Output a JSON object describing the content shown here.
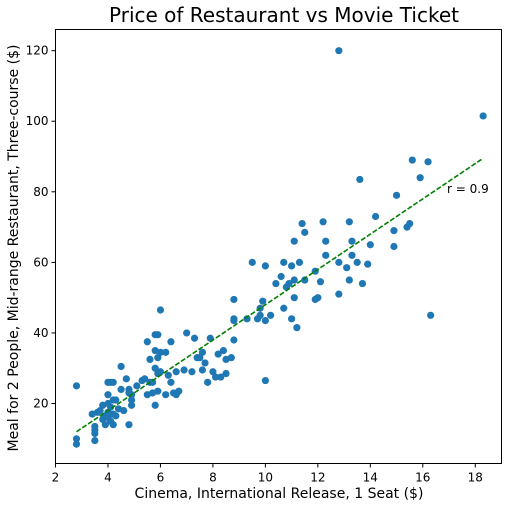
{
  "chart_data": {
    "type": "scatter",
    "title": "Price of Restaurant vs Movie Ticket",
    "xlabel": "Cinema, International Release, 1 Seat ($)",
    "ylabel": "Meal for 2 People, Mid-range Restaurant, Three-course ($)",
    "xlim": [
      2,
      19
    ],
    "ylim": [
      3,
      126
    ],
    "xticks": [
      2,
      4,
      6,
      8,
      10,
      12,
      14,
      16,
      18
    ],
    "yticks": [
      20,
      40,
      60,
      80,
      100,
      120
    ],
    "grid": false,
    "point_color": "#1f77b4",
    "fit_color": "#008000",
    "fit_line": {
      "x": [
        2.8,
        18.3
      ],
      "y": [
        12.0,
        89.5
      ]
    },
    "annotation": "r = 0.9",
    "points": [
      [
        2.8,
        8.5
      ],
      [
        2.8,
        10.0
      ],
      [
        2.8,
        25.0
      ],
      [
        3.4,
        17.0
      ],
      [
        3.5,
        9.5
      ],
      [
        3.5,
        11.5
      ],
      [
        3.5,
        12.5
      ],
      [
        3.5,
        13.5
      ],
      [
        3.6,
        17.5
      ],
      [
        3.7,
        18.0
      ],
      [
        3.8,
        19.5
      ],
      [
        3.8,
        15.5
      ],
      [
        3.9,
        14.0
      ],
      [
        3.9,
        16.5
      ],
      [
        4.0,
        16.0
      ],
      [
        4.0,
        17.5
      ],
      [
        4.0,
        20.0
      ],
      [
        4.0,
        22.5
      ],
      [
        4.0,
        26.0
      ],
      [
        4.1,
        15.0
      ],
      [
        4.1,
        19.0
      ],
      [
        4.1,
        26.0
      ],
      [
        4.2,
        14.0
      ],
      [
        4.2,
        17.0
      ],
      [
        4.2,
        21.0
      ],
      [
        4.2,
        26.0
      ],
      [
        4.3,
        16.5
      ],
      [
        4.3,
        21.0
      ],
      [
        4.4,
        18.5
      ],
      [
        4.5,
        24.0
      ],
      [
        4.5,
        30.5
      ],
      [
        4.6,
        18.0
      ],
      [
        4.7,
        27.0
      ],
      [
        4.8,
        24.0
      ],
      [
        4.8,
        23.0
      ],
      [
        4.8,
        14.0
      ],
      [
        4.9,
        22.5
      ],
      [
        4.9,
        19.5
      ],
      [
        4.9,
        21.0
      ],
      [
        5.1,
        25.0
      ],
      [
        5.3,
        26.5
      ],
      [
        5.4,
        27.0
      ],
      [
        5.5,
        22.5
      ],
      [
        5.5,
        37.5
      ],
      [
        5.6,
        32.5
      ],
      [
        5.6,
        26.0
      ],
      [
        5.7,
        23.0
      ],
      [
        5.7,
        26.0
      ],
      [
        5.8,
        39.5
      ],
      [
        5.8,
        19.5
      ],
      [
        5.8,
        35.0
      ],
      [
        5.8,
        30.0
      ],
      [
        5.9,
        33.0
      ],
      [
        5.9,
        23.5
      ],
      [
        5.9,
        28.5
      ],
      [
        5.9,
        39.5
      ],
      [
        6.0,
        46.5
      ],
      [
        6.0,
        29.0
      ],
      [
        6.0,
        34.5
      ],
      [
        6.2,
        34.5
      ],
      [
        6.2,
        22.5
      ],
      [
        6.3,
        28.0
      ],
      [
        6.4,
        26.0
      ],
      [
        6.4,
        37.5
      ],
      [
        6.5,
        23.0
      ],
      [
        6.6,
        29.0
      ],
      [
        6.6,
        22.5
      ],
      [
        6.7,
        23.5
      ],
      [
        6.9,
        29.5
      ],
      [
        7.0,
        40.0
      ],
      [
        7.2,
        29.0
      ],
      [
        7.3,
        38.5
      ],
      [
        7.4,
        33.0
      ],
      [
        7.5,
        33.0
      ],
      [
        7.6,
        34.5
      ],
      [
        7.6,
        29.5
      ],
      [
        7.7,
        31.5
      ],
      [
        7.8,
        26.0
      ],
      [
        7.9,
        38.5
      ],
      [
        8.0,
        29.0
      ],
      [
        8.1,
        27.5
      ],
      [
        8.2,
        34.0
      ],
      [
        8.3,
        27.5
      ],
      [
        8.4,
        35.0
      ],
      [
        8.5,
        32.5
      ],
      [
        8.5,
        28.5
      ],
      [
        8.7,
        33.0
      ],
      [
        8.8,
        49.5
      ],
      [
        8.8,
        43.5
      ],
      [
        8.8,
        44.0
      ],
      [
        8.8,
        38.0
      ],
      [
        9.3,
        44.0
      ],
      [
        9.5,
        60.0
      ],
      [
        9.7,
        44.0
      ],
      [
        9.8,
        47.0
      ],
      [
        9.8,
        45.0
      ],
      [
        9.9,
        49.0
      ],
      [
        10.0,
        43.5
      ],
      [
        10.0,
        59.0
      ],
      [
        10.0,
        26.5
      ],
      [
        10.2,
        45.0
      ],
      [
        10.4,
        54.0
      ],
      [
        10.6,
        56.0
      ],
      [
        10.7,
        60.0
      ],
      [
        10.7,
        47.0
      ],
      [
        10.8,
        53.0
      ],
      [
        10.9,
        54.0
      ],
      [
        11.0,
        59.0
      ],
      [
        11.0,
        44.0
      ],
      [
        11.1,
        55.0
      ],
      [
        11.1,
        66.0
      ],
      [
        11.1,
        50.0
      ],
      [
        11.2,
        41.5
      ],
      [
        11.3,
        60.0
      ],
      [
        11.4,
        71.0
      ],
      [
        11.5,
        55.0
      ],
      [
        11.5,
        68.5
      ],
      [
        11.9,
        57.5
      ],
      [
        11.9,
        49.5
      ],
      [
        12.0,
        50.0
      ],
      [
        12.1,
        54.5
      ],
      [
        12.2,
        71.5
      ],
      [
        12.3,
        66.0
      ],
      [
        12.3,
        62.0
      ],
      [
        12.8,
        60.0
      ],
      [
        12.8,
        120.0
      ],
      [
        12.8,
        51.0
      ],
      [
        13.1,
        58.5
      ],
      [
        13.2,
        55.0
      ],
      [
        13.2,
        71.5
      ],
      [
        13.3,
        66.0
      ],
      [
        13.3,
        62.0
      ],
      [
        13.5,
        60.0
      ],
      [
        13.6,
        83.5
      ],
      [
        13.7,
        54.0
      ],
      [
        13.9,
        59.5
      ],
      [
        14.0,
        65.0
      ],
      [
        14.2,
        73.0
      ],
      [
        14.9,
        64.5
      ],
      [
        14.9,
        69.0
      ],
      [
        15.0,
        79.0
      ],
      [
        15.4,
        70.0
      ],
      [
        15.5,
        71.0
      ],
      [
        15.6,
        89.0
      ],
      [
        15.9,
        84.0
      ],
      [
        16.2,
        88.5
      ],
      [
        16.3,
        45.0
      ],
      [
        18.3,
        101.5
      ]
    ]
  }
}
